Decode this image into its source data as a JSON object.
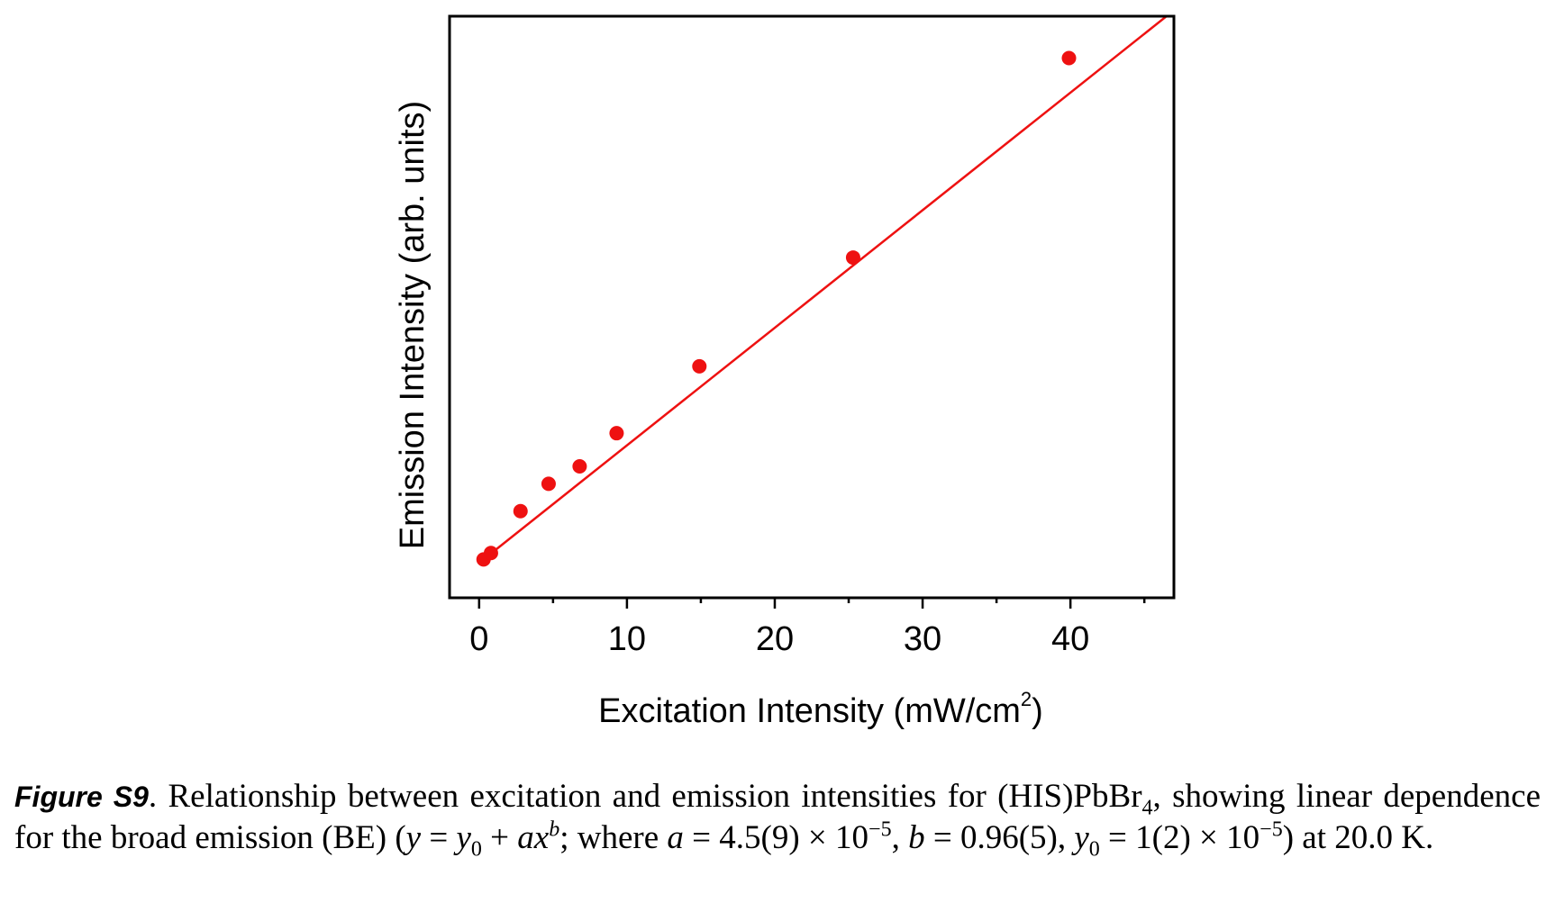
{
  "chart_data": {
    "type": "scatter",
    "xlabel_main": "Excitation Intensity (mW/cm",
    "xlabel_sup": "2",
    "xlabel_close": ")",
    "ylabel": "Emission Intensity (arb. units)",
    "xlim": [
      -2,
      47
    ],
    "ylim": [
      0,
      1
    ],
    "x_ticks": [
      0,
      10,
      20,
      30,
      40
    ],
    "x_minor_ticks": [
      5,
      15,
      25,
      35,
      45
    ],
    "y_ticks_labeled": false,
    "grid": false,
    "legend": "none",
    "series": [
      {
        "points": [
          {
            "x": 0.3,
            "y": 0.066
          },
          {
            "x": 0.8,
            "y": 0.077
          },
          {
            "x": 2.8,
            "y": 0.149
          },
          {
            "x": 4.7,
            "y": 0.196
          },
          {
            "x": 6.8,
            "y": 0.226
          },
          {
            "x": 9.3,
            "y": 0.283
          },
          {
            "x": 14.9,
            "y": 0.398
          },
          {
            "x": 25.3,
            "y": 0.585
          },
          {
            "x": 39.9,
            "y": 0.928
          }
        ]
      }
    ],
    "fit_line": {
      "start": {
        "x": 0.3,
        "y": 0.066
      },
      "end": {
        "x": 46.5,
        "y": 1.0
      }
    },
    "colors": {
      "points": "#ee1111",
      "fit": "#ee1111",
      "axes": "#000000"
    }
  },
  "caption": {
    "label": "Figure S9",
    "part1": ". Relationship between excitation and emission intensities for (HIS)PbBr",
    "sub1": "4",
    "part2": ", showing linear dependence for the broad emission (BE) (",
    "y_var": "y",
    "eq1": " = ",
    "y0_var": "y",
    "y0_sub": "0",
    "eq2": " + ",
    "ax_var": "ax",
    "b_sup": "b",
    "part3": "; where ",
    "a_var": "a",
    "part4": " = 4.5(9) × 10",
    "exp1": "−5",
    "part5": ", ",
    "b_var": "b",
    "part6": " = 0.96(5), ",
    "y0b_var": "y",
    "y0b_sub": "0",
    "part7": " = 1(2) × 10",
    "exp2": "−5",
    "part8": ") at 20.0 K."
  }
}
